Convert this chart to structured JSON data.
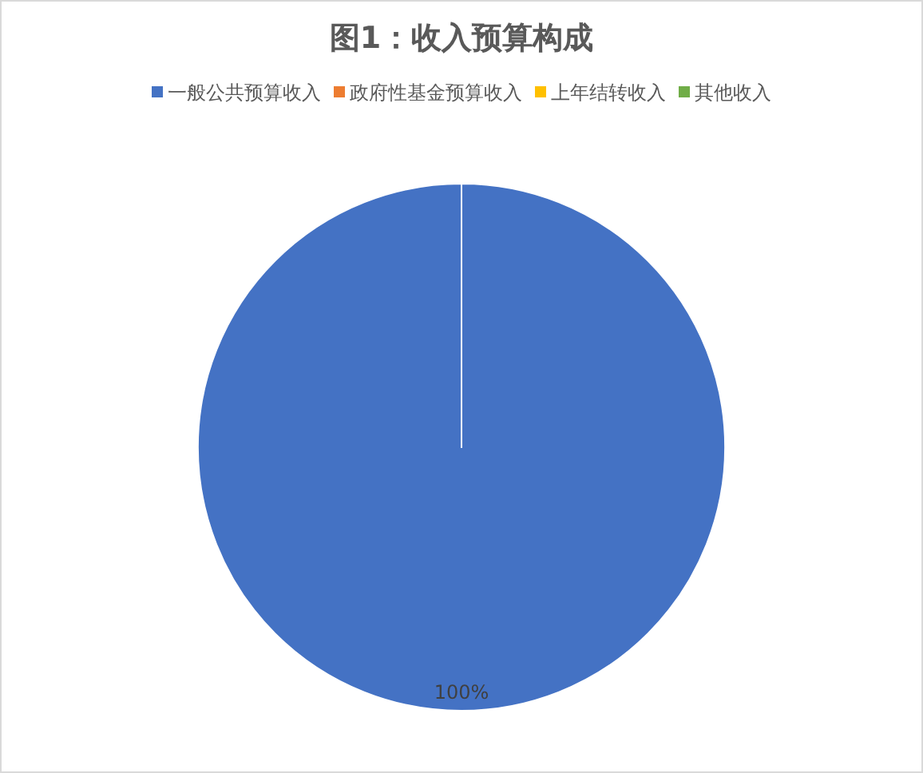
{
  "chart_data": {
    "type": "pie",
    "title": "图1：收入预算构成",
    "categories": [
      "一般公共预算收入",
      "政府性基金预算收入",
      "上年结转收入",
      "其他收入"
    ],
    "values": [
      100,
      0,
      0,
      0
    ],
    "colors": [
      "#4472c4",
      "#ed7d31",
      "#ffc000",
      "#70ad47"
    ],
    "value_labels": [
      "100%",
      null,
      null,
      null
    ],
    "legend": "top"
  }
}
